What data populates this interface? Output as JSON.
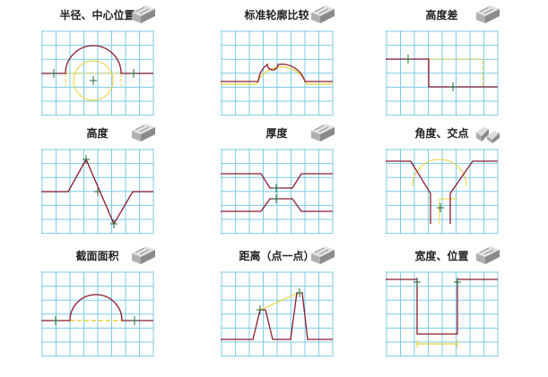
{
  "panels": [
    {
      "title": "半径、中心位置",
      "icon": "grooved-block-icon"
    },
    {
      "title": "标准轮廓比较",
      "icon": "grooved-block-icon"
    },
    {
      "title": "高度差",
      "icon": "grooved-block-icon"
    },
    {
      "title": "高度",
      "icon": "grooved-block-icon"
    },
    {
      "title": "厚度",
      "icon": "grooved-block-icon"
    },
    {
      "title": "角度、交点",
      "icon": "two-blocks-icon"
    },
    {
      "title": "截面面积",
      "icon": "grooved-block-icon"
    },
    {
      "title": "距离（点一点）",
      "icon": "grooved-block-icon"
    },
    {
      "title": "宽度、位置",
      "icon": "grooved-block-icon"
    }
  ],
  "colors": {
    "grid": "#7ccbe6",
    "profile": "#8b1a2e",
    "guide": "#e8d23a",
    "marker": "#2a6b3a"
  }
}
